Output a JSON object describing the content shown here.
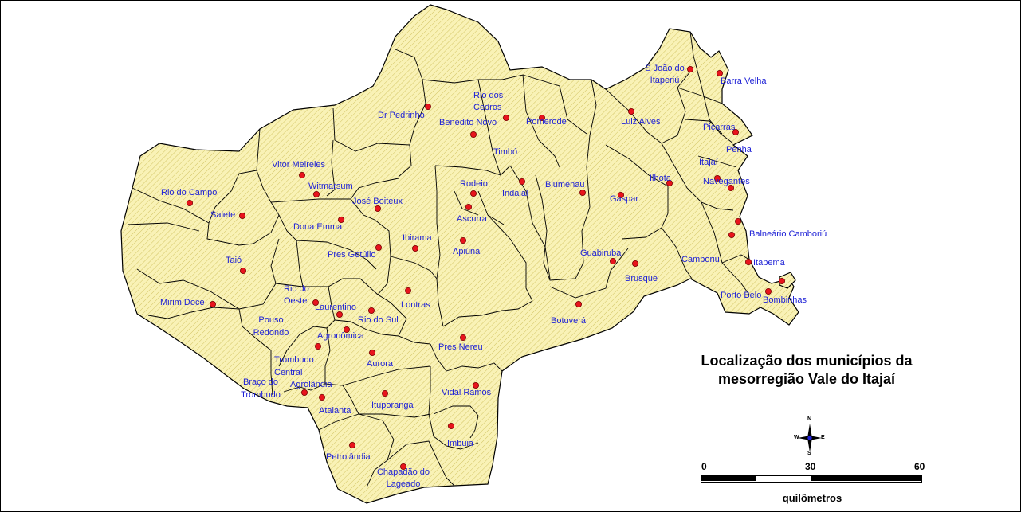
{
  "map": {
    "title_line1": "Localização dos municípios da",
    "title_line2": "mesorregião Vale do Itajaí",
    "land_color": "#f9f2b6",
    "hatch_color": "#c9b84f",
    "label_color": "#1f22d6",
    "dot_color": "#e8141c"
  },
  "municipalities": [
    {
      "name": "Dr Pedrinho"
    },
    {
      "name": "Rio dos Cedros"
    },
    {
      "name": "Benedito Novo"
    },
    {
      "name": "Pomerode"
    },
    {
      "name": "S João do Itaperiú"
    },
    {
      "name": "Barra Velha"
    },
    {
      "name": "Luiz Alves"
    },
    {
      "name": "Piçarras"
    },
    {
      "name": "Penha"
    },
    {
      "name": "Timbó"
    },
    {
      "name": "Vitor Meireles"
    },
    {
      "name": "Witmarsum"
    },
    {
      "name": "Rio do Campo"
    },
    {
      "name": "Salete"
    },
    {
      "name": "José Boiteux"
    },
    {
      "name": "Rodeio"
    },
    {
      "name": "Indaial"
    },
    {
      "name": "Blumenau"
    },
    {
      "name": "Gaspar"
    },
    {
      "name": "Ilhota"
    },
    {
      "name": "Itajaí"
    },
    {
      "name": "Navegantes"
    },
    {
      "name": "Ascurra"
    },
    {
      "name": "Dona Emma"
    },
    {
      "name": "Ibirama"
    },
    {
      "name": "Apiúna"
    },
    {
      "name": "Pres Getúlio"
    },
    {
      "name": "Taió"
    },
    {
      "name": "Balneário Camboriú"
    },
    {
      "name": "Guabiruba"
    },
    {
      "name": "Brusque"
    },
    {
      "name": "Camboriú"
    },
    {
      "name": "Itapema"
    },
    {
      "name": "Rio do Oeste"
    },
    {
      "name": "Mirim Doce"
    },
    {
      "name": "Laurentino"
    },
    {
      "name": "Lontras"
    },
    {
      "name": "Rio do Sul"
    },
    {
      "name": "Porto Belo"
    },
    {
      "name": "Bombinhas"
    },
    {
      "name": "Pouso Redondo"
    },
    {
      "name": "Agronômica"
    },
    {
      "name": "Botuverá"
    },
    {
      "name": "Trombudo Central"
    },
    {
      "name": "Pres Nereu"
    },
    {
      "name": "Aurora"
    },
    {
      "name": "Braço do Trombudo"
    },
    {
      "name": "Agrolândia"
    },
    {
      "name": "Vidal Ramos"
    },
    {
      "name": "Atalanta"
    },
    {
      "name": "Ituporanga"
    },
    {
      "name": "Imbuia"
    },
    {
      "name": "Petrolândia"
    },
    {
      "name": "Chapadão do Lageado"
    }
  ],
  "scale": {
    "tick_0": "0",
    "tick_30": "30",
    "tick_60": "60",
    "unit": "quilômetros"
  },
  "compass": {
    "n": "N",
    "s": "S",
    "e": "E",
    "w": "W"
  }
}
